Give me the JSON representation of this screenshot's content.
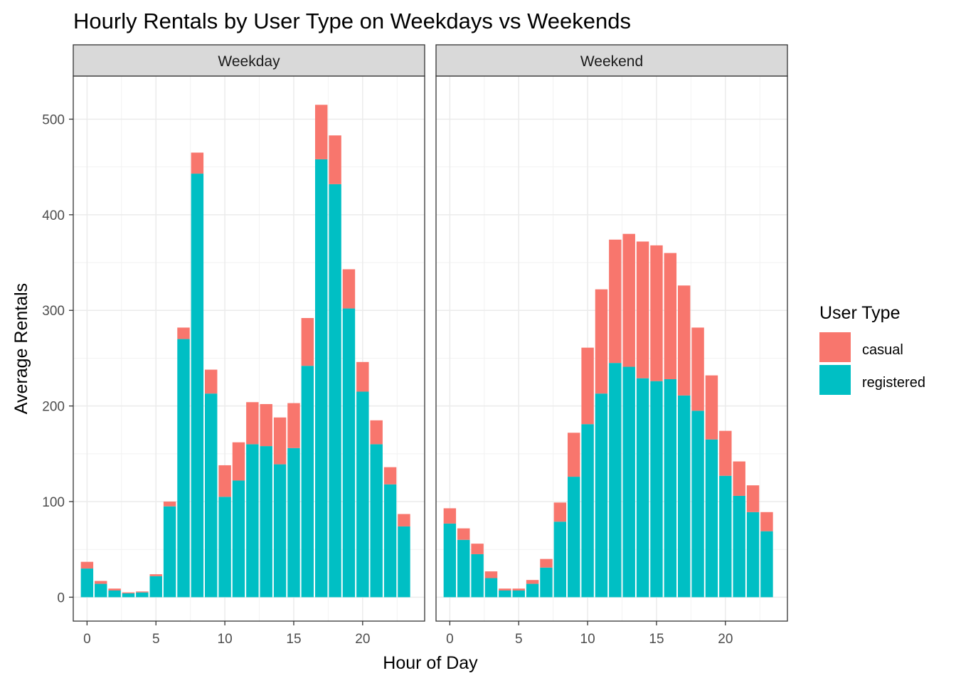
{
  "chart_data": {
    "type": "bar",
    "stacked": true,
    "title": "Hourly Rentals by User Type on Weekdays vs Weekends",
    "xlabel": "Hour of Day",
    "ylabel": "Average Rentals",
    "xlim": [
      -1,
      24.5
    ],
    "ylim": [
      -25,
      545
    ],
    "x_ticks": [
      0,
      5,
      10,
      15,
      20
    ],
    "y_ticks": [
      0,
      100,
      200,
      300,
      400,
      500
    ],
    "grid": true,
    "legend": {
      "title": "User Type",
      "position": "right",
      "entries": [
        {
          "name": "casual",
          "color": "#F8766D"
        },
        {
          "name": "registered",
          "color": "#00BFC4"
        }
      ]
    },
    "x": [
      0,
      1,
      2,
      3,
      4,
      5,
      6,
      7,
      8,
      9,
      10,
      11,
      12,
      13,
      14,
      15,
      16,
      17,
      18,
      19,
      20,
      21,
      22,
      23
    ],
    "panels": [
      {
        "name": "Weekday",
        "series": [
          {
            "name": "registered",
            "values": [
              30,
              14,
              7,
              4,
              5,
              22,
              95,
              270,
              443,
              213,
              105,
              122,
              160,
              158,
              139,
              156,
              242,
              458,
              432,
              302,
              215,
              160,
              118,
              74
            ]
          },
          {
            "name": "casual",
            "values": [
              7,
              3,
              2,
              1,
              1,
              2,
              5,
              12,
              22,
              25,
              33,
              40,
              44,
              44,
              49,
              47,
              50,
              57,
              51,
              41,
              31,
              25,
              18,
              13
            ]
          }
        ]
      },
      {
        "name": "Weekend",
        "series": [
          {
            "name": "registered",
            "values": [
              77,
              60,
              45,
              20,
              7,
              7,
              14,
              31,
              79,
              126,
              181,
              213,
              245,
              241,
              229,
              226,
              228,
              211,
              195,
              165,
              127,
              106,
              89,
              69
            ]
          },
          {
            "name": "casual",
            "values": [
              16,
              12,
              11,
              7,
              2,
              2,
              4,
              9,
              20,
              46,
              80,
              109,
              129,
              139,
              143,
              142,
              132,
              115,
              87,
              67,
              47,
              36,
              28,
              20
            ]
          }
        ]
      }
    ]
  }
}
